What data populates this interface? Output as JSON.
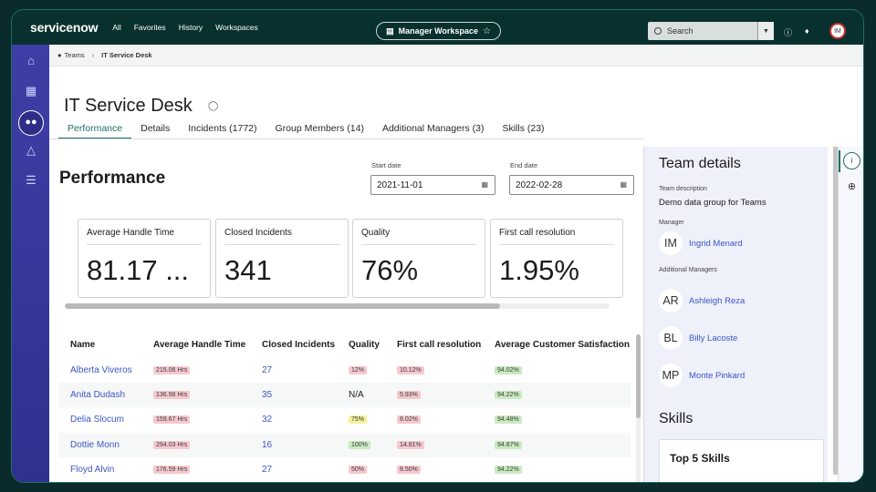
{
  "topbar": {
    "logo": "servicenow",
    "nav": [
      "All",
      "Favorites",
      "History",
      "Workspaces"
    ],
    "workspace": "Manager Workspace",
    "search_placeholder": "Search",
    "user_initials": "IM"
  },
  "breadcrumb": [
    "Teams",
    "IT Service Desk"
  ],
  "page": {
    "title": "IT Service Desk",
    "tabs": [
      "Performance",
      "Details",
      "Incidents (1772)",
      "Group Members (14)",
      "Additional Managers (3)",
      "Skills (23)"
    ],
    "active_tab": "Performance"
  },
  "performance": {
    "title": "Performance",
    "start_label": "Start date",
    "start_value": "2021-11-01",
    "end_label": "End date",
    "end_value": "2022-02-28",
    "cards": [
      {
        "label": "Average Handle Time",
        "value": "81.17 ..."
      },
      {
        "label": "Closed Incidents",
        "value": "341"
      },
      {
        "label": "Quality",
        "value": "76%"
      },
      {
        "label": "First call resolution",
        "value": "1.95%"
      }
    ]
  },
  "table": {
    "headers": [
      "Name",
      "Average Handle Time",
      "Closed Incidents",
      "Quality",
      "First call resolution",
      "Average Customer Satisfaction"
    ],
    "rows": [
      {
        "name": "Alberta Viveros",
        "aht": "215.06 Hrs",
        "closed": "27",
        "quality": "12%",
        "quality_status": "red",
        "fcr": "10.12%",
        "csat": "94.02%"
      },
      {
        "name": "Anita Dudash",
        "aht": "136.98 Hrs",
        "closed": "35",
        "quality": "N/A",
        "quality_status": "none",
        "fcr": "5.93%",
        "csat": "94.22%"
      },
      {
        "name": "Delia Slocum",
        "aht": "159.67 Hrs",
        "closed": "32",
        "quality": "75%",
        "quality_status": "yellow",
        "fcr": "8.02%",
        "csat": "94.48%"
      },
      {
        "name": "Dottie Monn",
        "aht": "294.03 Hrs",
        "closed": "16",
        "quality": "100%",
        "quality_status": "green",
        "fcr": "14.81%",
        "csat": "94.87%"
      },
      {
        "name": "Floyd Alvin",
        "aht": "176.59 Hrs",
        "closed": "27",
        "quality": "50%",
        "quality_status": "red",
        "fcr": "8.50%",
        "csat": "94.22%"
      }
    ]
  },
  "team_details": {
    "title": "Team details",
    "desc_label": "Team description",
    "desc_value": "Demo data group for Teams",
    "manager_label": "Manager",
    "manager": {
      "initials": "IM",
      "name": "Ingrid Menard"
    },
    "addl_label": "Additional Managers",
    "addl": [
      {
        "initials": "AR",
        "name": "Ashleigh Reza"
      },
      {
        "initials": "BL",
        "name": "Billy Lacoste"
      },
      {
        "initials": "MP",
        "name": "Monte Pinkard"
      }
    ],
    "skills_title": "Skills",
    "skills_card": "Top 5 Skills"
  },
  "colors": {
    "accent": "#1f6f66",
    "sidenav": "#3d3fa6",
    "link": "#3b56c4"
  },
  "icons": {
    "sidenav": [
      "home-icon",
      "calendar-icon",
      "groups-icon",
      "graduation-cap-icon",
      "list-icon"
    ],
    "right_toolbar": [
      "info-icon",
      "crosshair-icon"
    ]
  }
}
